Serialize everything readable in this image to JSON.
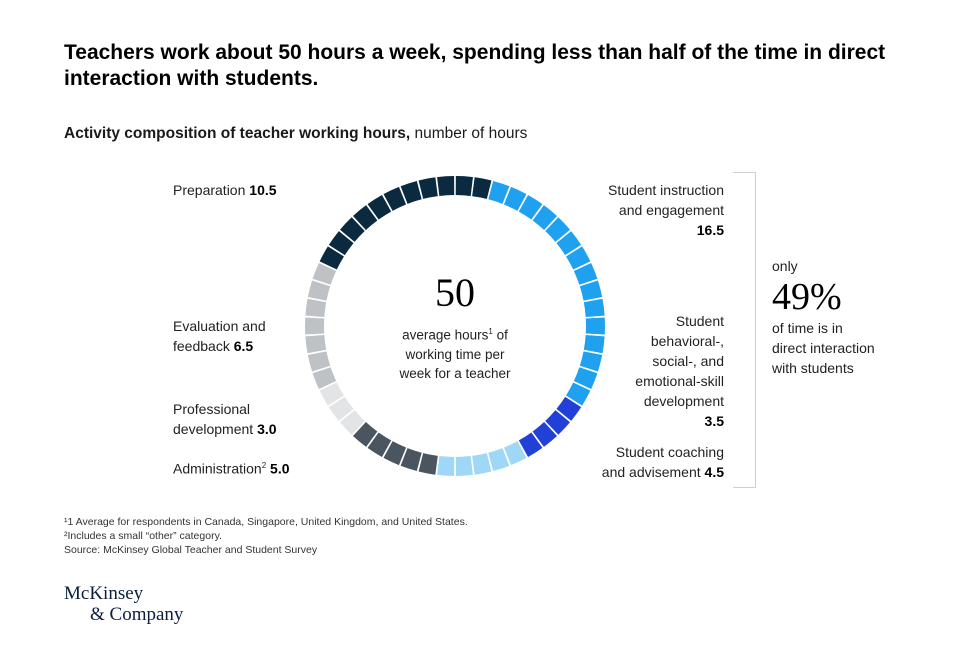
{
  "title": "Teachers work about 50 hours a week, spending less than half of the time in direct interaction with students.",
  "subtitle_bold": "Activity composition of teacher working hours,",
  "subtitle_rest": " number of hours",
  "center": {
    "value": "50",
    "line1": "average hours",
    "sup": "1",
    "line1b": " of",
    "line2": "working time per",
    "line3": "week for a teacher"
  },
  "labels": {
    "preparation": {
      "name": "Preparation ",
      "value": "10.5"
    },
    "evaluation": {
      "line1": "Evaluation and",
      "line2": "feedback ",
      "value": "6.5"
    },
    "professional": {
      "line1": "Professional",
      "line2": "development ",
      "value": "3.0"
    },
    "administration": {
      "name": "Administration",
      "sup": "2",
      "value": "5.0"
    },
    "instruction": {
      "line1": "Student instruction",
      "line2": "and engagement",
      "value": "16.5"
    },
    "behavioral": {
      "line1": "Student",
      "line2": "behavioral-,",
      "line3": "social-, and",
      "line4": "emotional-skill",
      "line5": "development",
      "value": "3.5"
    },
    "coaching": {
      "line1": "Student coaching",
      "line2": "and advisement ",
      "value": "4.5"
    }
  },
  "callout": {
    "pre": "only",
    "value": "49%",
    "line1": "of time is in",
    "line2": "direct interaction",
    "line3": "with students"
  },
  "notes": [
    "¹1 Average for respondents in Canada, Singapore, United Kingdom, and United States.",
    "²Includes a small “other” category.",
    "Source: McKinsey Global Teacher and Student Survey"
  ],
  "logo": {
    "line1": "McKinsey",
    "line2": "& Company"
  },
  "chart_data": {
    "type": "pie",
    "title": "Activity composition of teacher working hours, number of hours",
    "total": 50,
    "categories": [
      "Student instruction and engagement",
      "Student behavioral-, social-, and emotional-skill development",
      "Student coaching and advisement",
      "Administration",
      "Professional development",
      "Evaluation and feedback",
      "Preparation"
    ],
    "values": [
      16.5,
      3.5,
      4.5,
      5.0,
      3.0,
      6.5,
      10.5
    ],
    "colors": [
      "#1fa1f0",
      "#2140d8",
      "#9fd8f7",
      "#4a5560",
      "#e3e4e6",
      "#bfc2c5",
      "#0b2a40"
    ],
    "segments_per_hour": 1
  }
}
